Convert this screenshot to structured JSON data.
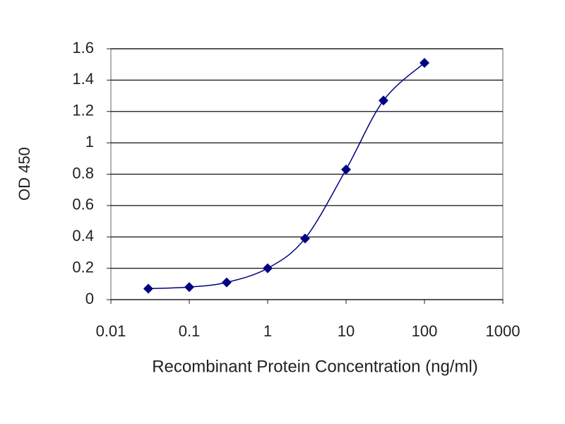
{
  "chart_data": {
    "type": "line",
    "x_label": "Recombinant Protein Concentration (ng/ml)",
    "y_label": "OD 450",
    "x": [
      0.03,
      0.1,
      0.3,
      1,
      3,
      10,
      30,
      100
    ],
    "series": [
      {
        "name": "OD 450",
        "color": "#000080",
        "values": [
          0.07,
          0.08,
          0.11,
          0.2,
          0.39,
          0.83,
          1.27,
          1.51
        ]
      }
    ],
    "xscale": "log",
    "xlim": [
      0.01,
      1000
    ],
    "xticks": [
      0.01,
      0.1,
      1,
      10,
      100,
      1000
    ],
    "ylim": [
      0,
      1.6
    ],
    "yticks": [
      0,
      0.2,
      0.4,
      0.6,
      0.8,
      1,
      1.2,
      1.4,
      1.6
    ],
    "grid": true
  }
}
